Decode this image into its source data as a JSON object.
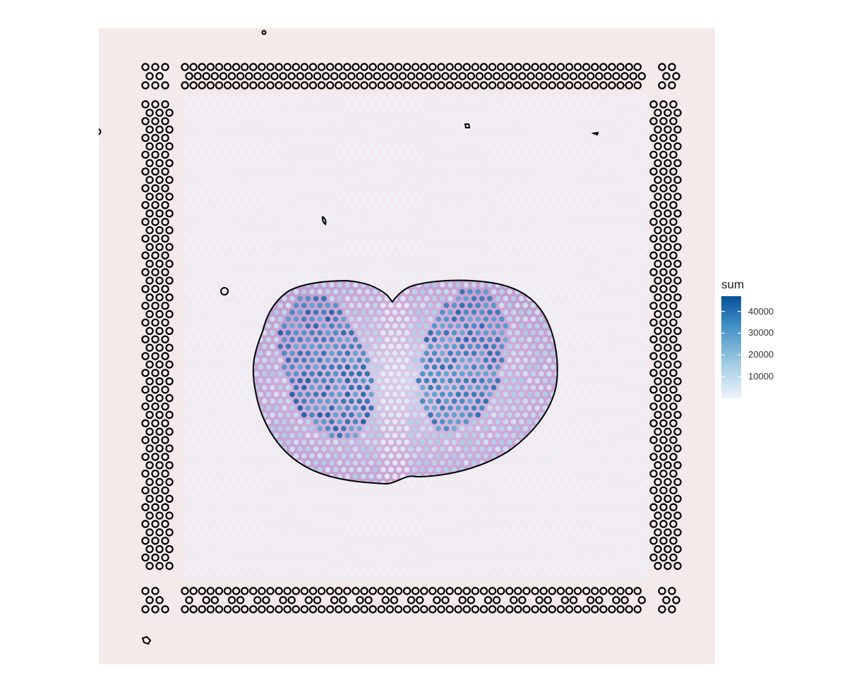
{
  "chart_data": {
    "type": "heatmap",
    "title": "",
    "description_kind": "spatial spot map overlaid on tissue image",
    "colorscale": {
      "title": "sum",
      "low_color": "#eef3fb",
      "high_color": "#08519c",
      "range": [
        0,
        47000
      ],
      "breaks": [
        10000,
        20000,
        30000,
        40000
      ],
      "break_labels": [
        "10000",
        "20000",
        "30000",
        "40000"
      ]
    },
    "regions": [
      {
        "name": "background spots",
        "sum_level": 800
      },
      {
        "name": "tissue outer ring",
        "sum_level": 12000
      },
      {
        "name": "left lobe inner",
        "sum_level": 36000
      },
      {
        "name": "right lobe inner",
        "sum_level": 34000
      }
    ],
    "tissue_outline_color": "#000000",
    "fiducial_marker_color": "#000000",
    "image_background_color": "#f4e9ea",
    "tissue_stain_color": "#c77fc9"
  }
}
